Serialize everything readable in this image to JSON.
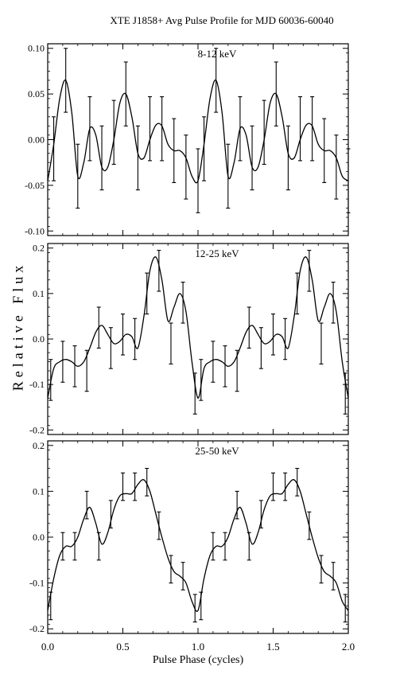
{
  "chart_data": {
    "type": "line",
    "title": "XTE J1858+ Avg Pulse Profile for MJD 60036-60040",
    "xlabel": "Pulse Phase (cycles)",
    "ylabel": "Relative Flux",
    "xlim": [
      0,
      2
    ],
    "xticks": [
      "0.0",
      "0.5",
      "1.0",
      "1.5",
      "2.0"
    ],
    "panels": [
      {
        "label": "8-12 keV",
        "ylim": [
          -0.105,
          0.105
        ],
        "yticks": [
          "-0.10",
          "-0.05",
          "0.00",
          "0.05",
          "0.10"
        ],
        "yticks_values": [
          -0.1,
          -0.05,
          0,
          0.05,
          0.1
        ],
        "points": {
          "x": [
            0.04,
            0.12,
            0.2,
            0.28,
            0.36,
            0.44,
            0.52,
            0.6,
            0.68,
            0.76,
            0.84,
            0.92,
            1.0
          ],
          "y": [
            -0.01,
            0.065,
            -0.04,
            0.012,
            -0.02,
            0.008,
            0.05,
            -0.02,
            0.012,
            0.012,
            -0.012,
            -0.03,
            -0.045
          ],
          "err": [
            0.035,
            0.035,
            0.035,
            0.035,
            0.035,
            0.035,
            0.035,
            0.035,
            0.035,
            0.035,
            0.035,
            0.035,
            0.035
          ]
        },
        "curve": {
          "x": [
            0.0,
            0.04,
            0.08,
            0.12,
            0.16,
            0.2,
            0.24,
            0.28,
            0.32,
            0.36,
            0.4,
            0.44,
            0.48,
            0.52,
            0.56,
            0.6,
            0.64,
            0.68,
            0.72,
            0.76,
            0.8,
            0.84,
            0.88,
            0.92,
            0.96,
            1.0
          ],
          "y": [
            -0.045,
            -0.005,
            0.045,
            0.065,
            0.03,
            -0.04,
            -0.025,
            0.012,
            0.005,
            -0.03,
            -0.03,
            0.0,
            0.04,
            0.05,
            0.025,
            -0.015,
            -0.02,
            0.0,
            0.016,
            0.015,
            -0.005,
            -0.012,
            -0.012,
            -0.02,
            -0.04,
            -0.045
          ]
        }
      },
      {
        "label": "12-25 keV",
        "ylim": [
          -0.21,
          0.21
        ],
        "yticks": [
          "-0.2",
          "-0.1",
          "0.0",
          "0.1",
          "0.2"
        ],
        "yticks_values": [
          -0.2,
          -0.1,
          0,
          0.1,
          0.2
        ],
        "points": {
          "x": [
            0.02,
            0.1,
            0.18,
            0.26,
            0.34,
            0.42,
            0.5,
            0.58,
            0.66,
            0.74,
            0.82,
            0.9,
            0.98
          ],
          "y": [
            -0.09,
            -0.05,
            -0.06,
            -0.07,
            0.025,
            -0.02,
            0.01,
            0.0,
            0.1,
            0.15,
            -0.01,
            0.08,
            -0.12
          ],
          "err": [
            0.045,
            0.045,
            0.045,
            0.045,
            0.045,
            0.045,
            0.045,
            0.045,
            0.045,
            0.045,
            0.045,
            0.045,
            0.045
          ]
        },
        "curve": {
          "x": [
            0.0,
            0.04,
            0.08,
            0.12,
            0.16,
            0.2,
            0.24,
            0.28,
            0.32,
            0.36,
            0.4,
            0.44,
            0.48,
            0.52,
            0.56,
            0.6,
            0.64,
            0.68,
            0.72,
            0.76,
            0.8,
            0.84,
            0.88,
            0.92,
            0.96,
            1.0
          ],
          "y": [
            -0.13,
            -0.065,
            -0.05,
            -0.045,
            -0.05,
            -0.06,
            -0.05,
            -0.02,
            0.015,
            0.03,
            0.01,
            -0.01,
            -0.005,
            0.01,
            0.005,
            -0.02,
            0.05,
            0.15,
            0.18,
            0.13,
            0.04,
            0.07,
            0.1,
            0.06,
            -0.05,
            -0.13
          ]
        }
      },
      {
        "label": "25-50 keV",
        "ylim": [
          -0.21,
          0.21
        ],
        "yticks": [
          "-0.2",
          "-0.1",
          "0.0",
          "0.1",
          "0.2"
        ],
        "yticks_values": [
          -0.2,
          -0.1,
          0,
          0.1,
          0.2
        ],
        "points": {
          "x": [
            0.02,
            0.1,
            0.18,
            0.26,
            0.34,
            0.42,
            0.5,
            0.58,
            0.66,
            0.74,
            0.82,
            0.9,
            0.98
          ],
          "y": [
            -0.15,
            -0.02,
            -0.02,
            0.07,
            -0.02,
            0.05,
            0.11,
            0.11,
            0.12,
            0.025,
            -0.07,
            -0.085,
            -0.155
          ],
          "err": [
            0.03,
            0.03,
            0.03,
            0.03,
            0.03,
            0.03,
            0.03,
            0.03,
            0.03,
            0.03,
            0.03,
            0.03,
            0.03
          ]
        },
        "curve": {
          "x": [
            0.0,
            0.04,
            0.08,
            0.12,
            0.16,
            0.2,
            0.24,
            0.28,
            0.32,
            0.36,
            0.4,
            0.44,
            0.48,
            0.52,
            0.56,
            0.6,
            0.64,
            0.68,
            0.72,
            0.76,
            0.8,
            0.84,
            0.88,
            0.92,
            0.96,
            1.0
          ],
          "y": [
            -0.16,
            -0.09,
            -0.04,
            -0.02,
            -0.02,
            0.0,
            0.04,
            0.065,
            0.03,
            -0.015,
            0.01,
            0.06,
            0.09,
            0.095,
            0.095,
            0.115,
            0.125,
            0.1,
            0.05,
            0.0,
            -0.045,
            -0.075,
            -0.085,
            -0.1,
            -0.14,
            -0.16
          ]
        }
      }
    ]
  }
}
